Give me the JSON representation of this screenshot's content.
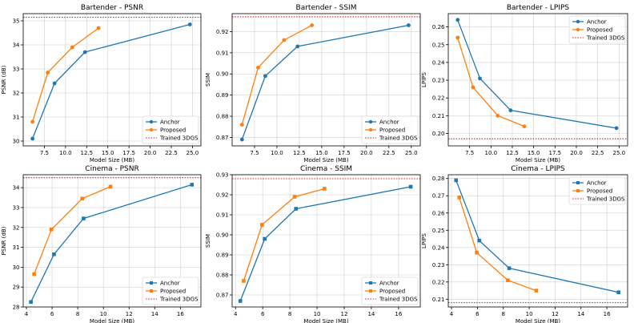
{
  "figure": {
    "legend_labels": [
      "Anchor",
      "Proposed",
      "Trained 3DGS"
    ]
  },
  "chart_data": [
    {
      "type": "line",
      "title": "Bartender - PSNR",
      "xlabel": "Model Size (MB)",
      "ylabel": "PSNR (dB)",
      "xlim": [
        5.0,
        26.0
      ],
      "ylim": [
        29.8,
        35.3
      ],
      "xticks": [
        7.5,
        10.0,
        12.5,
        15.0,
        17.5,
        20.0,
        22.5,
        25.0
      ],
      "xtick_labels": [
        "7.5",
        "10.0",
        "12.5",
        "15.0",
        "17.5",
        "20.0",
        "22.5",
        "25.0"
      ],
      "yticks": [
        30,
        31,
        32,
        33,
        34,
        35
      ],
      "ytick_labels": [
        "30",
        "31",
        "32",
        "33",
        "34",
        "35"
      ],
      "marker": "circle",
      "grid": true,
      "legend_position": "bottom-right",
      "series": [
        {
          "name": "Anchor",
          "color": "#1f77b4",
          "x": [
            6.1,
            8.7,
            12.3,
            24.7
          ],
          "y": [
            30.1,
            32.4,
            33.7,
            34.85
          ]
        },
        {
          "name": "Proposed",
          "color": "#ff7f0e",
          "x": [
            6.1,
            7.9,
            10.8,
            13.9
          ],
          "y": [
            30.8,
            32.85,
            33.9,
            34.7
          ]
        }
      ],
      "reference_line": {
        "name": "Trained 3DGS",
        "color": "#d62728",
        "y": 35.15
      }
    },
    {
      "type": "line",
      "title": "Bartender - SSIM",
      "xlabel": "Model Size (MB)",
      "ylabel": "SSIM",
      "xlim": [
        5.0,
        26.0
      ],
      "ylim": [
        0.866,
        0.9285
      ],
      "xticks": [
        7.5,
        10.0,
        12.5,
        15.0,
        17.5,
        20.0,
        22.5,
        25.0
      ],
      "xtick_labels": [
        "7.5",
        "10.0",
        "12.5",
        "15.0",
        "17.5",
        "20.0",
        "22.5",
        "25.0"
      ],
      "yticks": [
        0.87,
        0.88,
        0.89,
        0.9,
        0.91,
        0.92
      ],
      "ytick_labels": [
        "0.87",
        "0.88",
        "0.89",
        "0.90",
        "0.91",
        "0.92"
      ],
      "marker": "circle",
      "grid": true,
      "legend_position": "bottom-right",
      "series": [
        {
          "name": "Anchor",
          "color": "#1f77b4",
          "x": [
            6.1,
            8.7,
            12.3,
            24.7
          ],
          "y": [
            0.869,
            0.899,
            0.913,
            0.923
          ]
        },
        {
          "name": "Proposed",
          "color": "#ff7f0e",
          "x": [
            6.1,
            7.9,
            10.8,
            13.9
          ],
          "y": [
            0.876,
            0.903,
            0.916,
            0.923
          ]
        }
      ],
      "reference_line": {
        "name": "Trained 3DGS",
        "color": "#d62728",
        "y": 0.927
      }
    },
    {
      "type": "line",
      "title": "Bartender - LPIPS",
      "xlabel": "Model Size (MB)",
      "ylabel": "LPIPS",
      "xlim": [
        5.0,
        26.0
      ],
      "ylim": [
        0.193,
        0.2675
      ],
      "xticks": [
        7.5,
        10.0,
        12.5,
        15.0,
        17.5,
        20.0,
        22.5,
        25.0
      ],
      "xtick_labels": [
        "7.5",
        "10.0",
        "12.5",
        "15.0",
        "17.5",
        "20.0",
        "22.5",
        "25.0"
      ],
      "yticks": [
        0.2,
        0.21,
        0.22,
        0.23,
        0.24,
        0.25,
        0.26
      ],
      "ytick_labels": [
        "0.20",
        "0.21",
        "0.22",
        "0.23",
        "0.24",
        "0.25",
        "0.26"
      ],
      "marker": "circle",
      "grid": true,
      "legend_position": "top-right",
      "series": [
        {
          "name": "Anchor",
          "color": "#1f77b4",
          "x": [
            6.1,
            8.7,
            12.3,
            24.7
          ],
          "y": [
            0.264,
            0.231,
            0.213,
            0.203
          ]
        },
        {
          "name": "Proposed",
          "color": "#ff7f0e",
          "x": [
            6.1,
            7.9,
            10.8,
            13.9
          ],
          "y": [
            0.254,
            0.226,
            0.21,
            0.204
          ]
        }
      ],
      "reference_line": {
        "name": "Trained 3DGS",
        "color": "#d62728",
        "y": 0.197
      }
    },
    {
      "type": "line",
      "title": "Cinema - PSNR",
      "xlabel": "Model Size (MB)",
      "ylabel": "PSNR (dB)",
      "xlim": [
        3.75,
        17.6
      ],
      "ylim": [
        28.0,
        34.65
      ],
      "xticks": [
        4,
        6,
        8,
        10,
        12,
        14,
        16
      ],
      "xtick_labels": [
        "4",
        "6",
        "8",
        "10",
        "12",
        "14",
        "16"
      ],
      "yticks": [
        28,
        29,
        30,
        31,
        32,
        33,
        34
      ],
      "ytick_labels": [
        "28",
        "29",
        "30",
        "31",
        "32",
        "33",
        "34"
      ],
      "marker": "square",
      "grid": true,
      "legend_position": "bottom-right",
      "series": [
        {
          "name": "Anchor",
          "color": "#1f77b4",
          "x": [
            4.35,
            6.15,
            8.45,
            16.9
          ],
          "y": [
            28.25,
            30.65,
            32.45,
            34.15
          ]
        },
        {
          "name": "Proposed",
          "color": "#ff7f0e",
          "x": [
            4.6,
            5.95,
            8.35,
            10.55
          ],
          "y": [
            29.65,
            31.9,
            33.45,
            34.05
          ]
        }
      ],
      "reference_line": {
        "name": "Trained 3DGS",
        "color": "#d62728",
        "y": 34.5
      }
    },
    {
      "type": "line",
      "title": "Cinema - SSIM",
      "xlabel": "Model Size (MB)",
      "ylabel": "SSIM",
      "xlim": [
        3.75,
        17.6
      ],
      "ylim": [
        0.864,
        0.93
      ],
      "xticks": [
        4,
        6,
        8,
        10,
        12,
        14,
        16
      ],
      "xtick_labels": [
        "4",
        "6",
        "8",
        "10",
        "12",
        "14",
        "16"
      ],
      "yticks": [
        0.87,
        0.88,
        0.89,
        0.9,
        0.91,
        0.92,
        0.93
      ],
      "ytick_labels": [
        "0.87",
        "0.88",
        "0.89",
        "0.90",
        "0.91",
        "0.92",
        "0.93"
      ],
      "marker": "square",
      "grid": true,
      "legend_position": "bottom-right",
      "series": [
        {
          "name": "Anchor",
          "color": "#1f77b4",
          "x": [
            4.35,
            6.15,
            8.45,
            16.9
          ],
          "y": [
            0.867,
            0.898,
            0.913,
            0.924
          ]
        },
        {
          "name": "Proposed",
          "color": "#ff7f0e",
          "x": [
            4.6,
            5.95,
            8.35,
            10.55
          ],
          "y": [
            0.877,
            0.905,
            0.919,
            0.923
          ]
        }
      ],
      "reference_line": {
        "name": "Trained 3DGS",
        "color": "#d62728",
        "y": 0.928
      }
    },
    {
      "type": "line",
      "title": "Cinema - LPIPS",
      "xlabel": "Model Size (MB)",
      "ylabel": "LPIPS",
      "xlim": [
        3.75,
        17.6
      ],
      "ylim": [
        0.2055,
        0.2822
      ],
      "xticks": [
        4,
        6,
        8,
        10,
        12,
        14,
        16
      ],
      "xtick_labels": [
        "4",
        "6",
        "8",
        "10",
        "12",
        "14",
        "16"
      ],
      "yticks": [
        0.21,
        0.22,
        0.23,
        0.24,
        0.25,
        0.26,
        0.27,
        0.28
      ],
      "ytick_labels": [
        "0.21",
        "0.22",
        "0.23",
        "0.24",
        "0.25",
        "0.26",
        "0.27",
        "0.28"
      ],
      "marker": "square",
      "grid": true,
      "legend_position": "top-right",
      "series": [
        {
          "name": "Anchor",
          "color": "#1f77b4",
          "x": [
            4.35,
            6.15,
            8.45,
            16.9
          ],
          "y": [
            0.279,
            0.244,
            0.228,
            0.214
          ]
        },
        {
          "name": "Proposed",
          "color": "#ff7f0e",
          "x": [
            4.6,
            5.95,
            8.35,
            10.55
          ],
          "y": [
            0.269,
            0.237,
            0.221,
            0.215
          ]
        }
      ],
      "reference_line": {
        "name": "Trained 3DGS",
        "color": "#d62728",
        "y": 0.208
      }
    }
  ]
}
